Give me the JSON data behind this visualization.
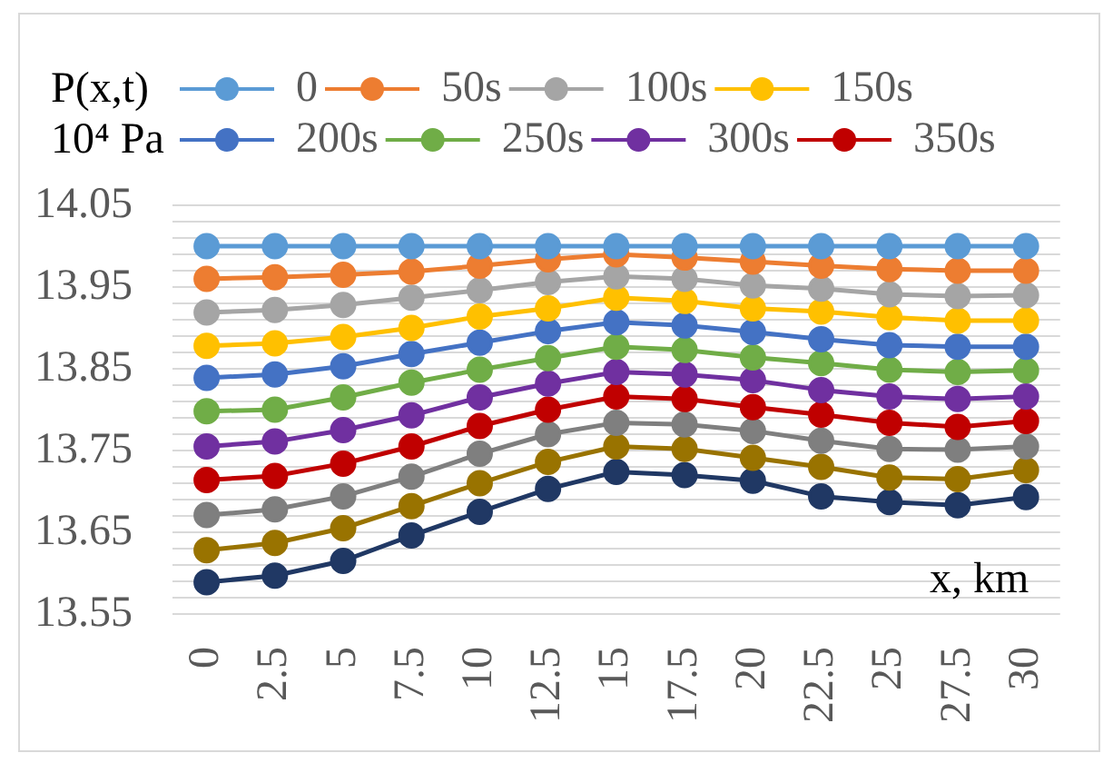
{
  "chart_data": {
    "type": "line",
    "ylabel": "P(x,t)\n10⁴ Pa",
    "xlabel": "x, km",
    "categories": [
      "0",
      "2.5",
      "5",
      "7.5",
      "10",
      "12.5",
      "15",
      "17.5",
      "20",
      "22.5",
      "25",
      "27.5",
      "30"
    ],
    "ylim": [
      13.55,
      14.05
    ],
    "yticks": [
      13.55,
      {
        "value": 13.57,
        "label": null
      },
      {
        "value": 13.59,
        "label": null
      },
      {
        "value": 13.61,
        "label": null
      },
      {
        "value": 13.63,
        "label": null
      },
      13.65,
      {
        "value": 13.67,
        "label": null
      },
      {
        "value": 13.69,
        "label": null
      },
      {
        "value": 13.71,
        "label": null
      },
      {
        "value": 13.73,
        "label": null
      },
      13.75,
      {
        "value": 13.77,
        "label": null
      },
      {
        "value": 13.79,
        "label": null
      },
      {
        "value": 13.81,
        "label": null
      },
      {
        "value": 13.83,
        "label": null
      },
      13.85,
      {
        "value": 13.87,
        "label": null
      },
      {
        "value": 13.89,
        "label": null
      },
      {
        "value": 13.91,
        "label": null
      },
      {
        "value": 13.93,
        "label": null
      },
      13.95,
      {
        "value": 13.97,
        "label": null
      },
      {
        "value": 13.99,
        "label": null
      },
      {
        "value": 14.01,
        "label": null
      },
      {
        "value": 14.03,
        "label": null
      },
      14.05
    ],
    "grid": "y",
    "legend": "top",
    "marker": "circle",
    "line_style": "solid",
    "series": [
      {
        "name": "0",
        "color": "#5b9bd5",
        "values": [
          14,
          14,
          14,
          14,
          14,
          14,
          14,
          14,
          14,
          14,
          14,
          14,
          14
        ]
      },
      {
        "name": "50s",
        "color": "#ed7d31",
        "values": [
          13.96,
          13.962,
          13.965,
          13.969,
          13.976,
          13.984,
          13.99,
          13.986,
          13.981,
          13.976,
          13.972,
          13.97,
          13.97
        ]
      },
      {
        "name": "100s",
        "color": "#a5a5a5",
        "values": [
          13.919,
          13.922,
          13.928,
          13.937,
          13.946,
          13.956,
          13.963,
          13.96,
          13.952,
          13.948,
          13.941,
          13.939,
          13.94
        ]
      },
      {
        "name": "150s",
        "color": "#ffc000",
        "values": [
          13.878,
          13.881,
          13.889,
          13.9,
          13.914,
          13.924,
          13.937,
          13.933,
          13.924,
          13.92,
          13.913,
          13.909,
          13.909
        ]
      },
      {
        "name": "200s",
        "color": "#4472c4",
        "values": [
          13.839,
          13.843,
          13.853,
          13.868,
          13.882,
          13.896,
          13.907,
          13.903,
          13.895,
          13.886,
          13.879,
          13.877,
          13.877
        ]
      },
      {
        "name": "250s",
        "color": "#70ad47",
        "values": [
          13.798,
          13.8,
          13.815,
          13.833,
          13.849,
          13.863,
          13.877,
          13.873,
          13.864,
          13.857,
          13.849,
          13.846,
          13.848
        ]
      },
      {
        "name": "300s",
        "color": "#7030a0",
        "values": [
          13.755,
          13.761,
          13.775,
          13.793,
          13.815,
          13.832,
          13.846,
          13.843,
          13.836,
          13.824,
          13.816,
          13.813,
          13.816
        ]
      },
      {
        "name": "350s",
        "color": "#c00000",
        "values": [
          13.714,
          13.719,
          13.734,
          13.755,
          13.78,
          13.8,
          13.816,
          13.813,
          13.803,
          13.794,
          13.784,
          13.779,
          13.786
        ]
      },
      {
        "color": "#7f7f7f",
        "values": [
          13.671,
          13.678,
          13.694,
          13.718,
          13.746,
          13.77,
          13.784,
          13.782,
          13.774,
          13.762,
          13.752,
          13.751,
          13.755
        ]
      },
      {
        "color": "#997300",
        "values": [
          13.628,
          13.637,
          13.655,
          13.682,
          13.71,
          13.736,
          13.755,
          13.752,
          13.741,
          13.73,
          13.717,
          13.715,
          13.726
        ]
      },
      {
        "color": "#203864",
        "values": [
          13.589,
          13.597,
          13.615,
          13.646,
          13.675,
          13.703,
          13.724,
          13.72,
          13.713,
          13.694,
          13.687,
          13.683,
          13.693
        ]
      }
    ]
  }
}
